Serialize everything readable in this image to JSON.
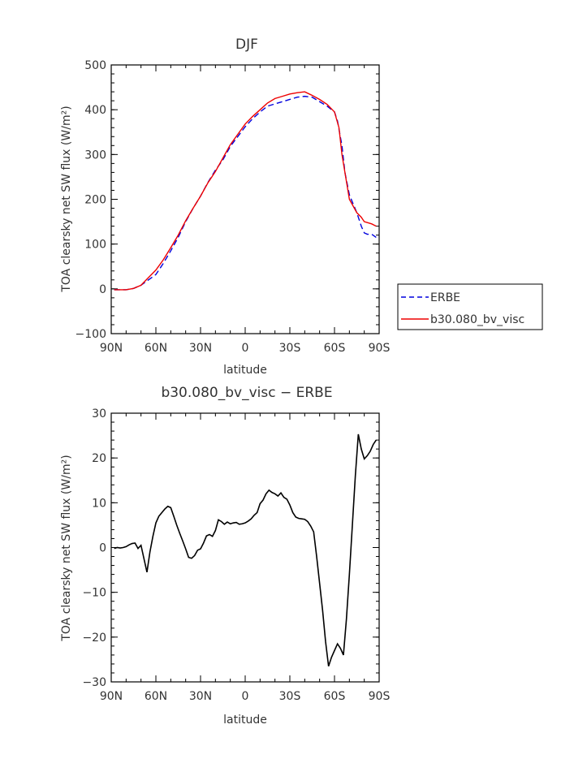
{
  "chart_data": [
    {
      "type": "line",
      "title": "DJF",
      "xlabel": "latitude",
      "ylabel": "TOA clearsky net SW flux (W/m²)",
      "xlim": [
        90,
        -90
      ],
      "ylim": [
        -100,
        500
      ],
      "xtick_values": [
        90,
        60,
        30,
        0,
        -30,
        -60,
        -90
      ],
      "xtick_labels": [
        "90N",
        "60N",
        "30N",
        "0",
        "30S",
        "60S",
        "90S"
      ],
      "ytick_values": [
        -100,
        0,
        100,
        200,
        300,
        400,
        500
      ],
      "ytick_labels": [
        "−100",
        "0",
        "100",
        "200",
        "300",
        "400",
        "500"
      ],
      "legend": "right",
      "series": [
        {
          "name": "ERBE",
          "color": "#0000dd",
          "style": "dashed",
          "x": [
            88,
            85,
            80,
            75,
            70,
            65,
            60,
            55,
            50,
            45,
            40,
            35,
            30,
            25,
            20,
            15,
            10,
            5,
            0,
            -5,
            -10,
            -15,
            -20,
            -25,
            -30,
            -35,
            -40,
            -45,
            -50,
            -55,
            -60,
            -62,
            -65,
            -67,
            -70,
            -75,
            -78,
            -80,
            -82,
            -85,
            -88
          ],
          "y": [
            -2,
            -2,
            -2,
            1,
            8,
            20,
            32,
            57,
            85,
            115,
            150,
            180,
            207,
            238,
            265,
            288,
            318,
            340,
            362,
            380,
            395,
            408,
            413,
            418,
            423,
            428,
            430,
            428,
            418,
            408,
            395,
            375,
            320,
            260,
            210,
            170,
            140,
            125,
            122,
            122,
            115
          ]
        },
        {
          "name": "b30.080_bv_visc",
          "color": "#ee0000",
          "style": "solid",
          "x": [
            88,
            85,
            80,
            75,
            70,
            65,
            60,
            55,
            50,
            45,
            40,
            35,
            30,
            25,
            20,
            15,
            10,
            5,
            0,
            -5,
            -10,
            -15,
            -20,
            -25,
            -30,
            -35,
            -40,
            -45,
            -50,
            -55,
            -60,
            -63,
            -65,
            -68,
            -70,
            -75,
            -78,
            -80,
            -85,
            -88
          ],
          "y": [
            -2,
            -2,
            -2,
            1,
            8,
            25,
            42,
            65,
            92,
            120,
            152,
            180,
            207,
            237,
            262,
            292,
            322,
            345,
            368,
            385,
            400,
            415,
            425,
            430,
            435,
            438,
            440,
            432,
            423,
            412,
            395,
            360,
            300,
            240,
            200,
            170,
            160,
            150,
            145,
            140
          ]
        }
      ]
    },
    {
      "type": "line",
      "title": "b30.080_bv_visc − ERBE",
      "xlabel": "latitude",
      "ylabel": "TOA clearsky net SW flux (W/m²)",
      "xlim": [
        90,
        -90
      ],
      "ylim": [
        -30,
        30
      ],
      "xtick_values": [
        90,
        60,
        30,
        0,
        -30,
        -60,
        -90
      ],
      "xtick_labels": [
        "90N",
        "60N",
        "30N",
        "0",
        "30S",
        "60S",
        "90S"
      ],
      "ytick_values": [
        -30,
        -20,
        -10,
        0,
        10,
        20,
        30
      ],
      "ytick_labels": [
        "−30",
        "−20",
        "−10",
        "0",
        "10",
        "20",
        "30"
      ],
      "series": [
        {
          "color": "#000000",
          "style": "solid",
          "x": [
            88,
            86,
            84,
            82,
            80,
            78,
            76,
            74,
            72,
            70,
            68,
            66,
            64,
            62,
            60,
            58,
            56,
            54,
            52,
            50,
            48,
            46,
            44,
            42,
            40,
            38,
            36,
            34,
            32,
            30,
            28,
            26,
            24,
            22,
            20,
            18,
            16,
            14,
            12,
            10,
            8,
            6,
            4,
            2,
            0,
            -2,
            -4,
            -6,
            -8,
            -10,
            -12,
            -14,
            -16,
            -18,
            -20,
            -22,
            -24,
            -26,
            -28,
            -30,
            -32,
            -34,
            -36,
            -38,
            -40,
            -42,
            -44,
            -46,
            -48,
            -50,
            -52,
            -54,
            -56,
            -58,
            -60,
            -62,
            -64,
            -66,
            -68,
            -70,
            -72,
            -74,
            -76,
            -78,
            -80,
            -82,
            -84,
            -86,
            -88
          ],
          "y": [
            -0.2,
            0.0,
            -0.1,
            0.0,
            0.2,
            0.6,
            0.9,
            1.0,
            -0.2,
            0.5,
            -2.5,
            -5.5,
            -1.0,
            2.5,
            5.5,
            7.0,
            7.8,
            8.6,
            9.2,
            8.9,
            7.0,
            5.0,
            3.2,
            1.5,
            -0.3,
            -2.2,
            -2.4,
            -1.8,
            -0.6,
            -0.3,
            1.0,
            2.6,
            2.9,
            2.5,
            3.8,
            6.2,
            5.8,
            5.2,
            5.7,
            5.3,
            5.5,
            5.6,
            5.2,
            5.3,
            5.5,
            5.9,
            6.4,
            7.2,
            7.8,
            9.8,
            10.6,
            12.0,
            12.8,
            12.3,
            12.0,
            11.5,
            12.2,
            11.2,
            10.8,
            9.5,
            7.8,
            6.8,
            6.5,
            6.4,
            6.3,
            5.8,
            4.8,
            3.5,
            -2.0,
            -8.0,
            -14.0,
            -21.0,
            -26.5,
            -24.5,
            -23.0,
            -21.5,
            -22.5,
            -24.0,
            -16.0,
            -6.0,
            5.0,
            16.0,
            25.3,
            22.0,
            19.8,
            20.5,
            21.5,
            23.0,
            24.0
          ]
        }
      ]
    }
  ]
}
